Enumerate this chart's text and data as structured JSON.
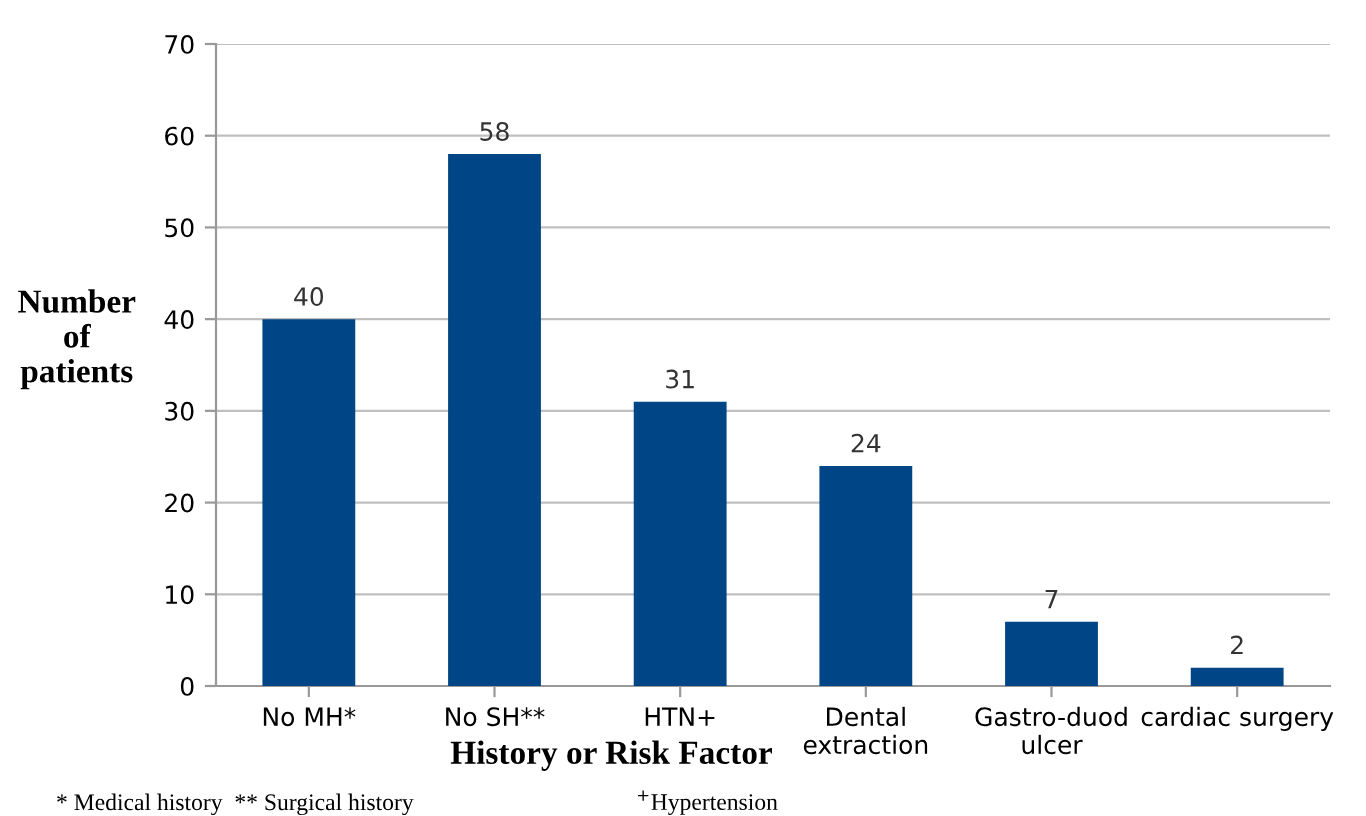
{
  "chart_data": {
    "type": "bar",
    "xlabel": "History or Risk Factor",
    "ylabel": "Number\nof\npatients",
    "categories": [
      "No MH*",
      "No SH**",
      "HTN+",
      "Dental\nextraction",
      "Gastro-duod\nulcer",
      "cardiac surgery"
    ],
    "values": [
      40,
      58,
      31,
      24,
      7,
      2
    ],
    "color": "#004586",
    "ylim": [
      0,
      70
    ],
    "yticks": [
      0,
      10,
      20,
      30,
      40,
      50,
      60,
      70
    ],
    "grid": "y",
    "data_labels": true,
    "annotations": [
      "* Medical history  ** Surgical history",
      "$^{+}$Hypertension"
    ]
  }
}
